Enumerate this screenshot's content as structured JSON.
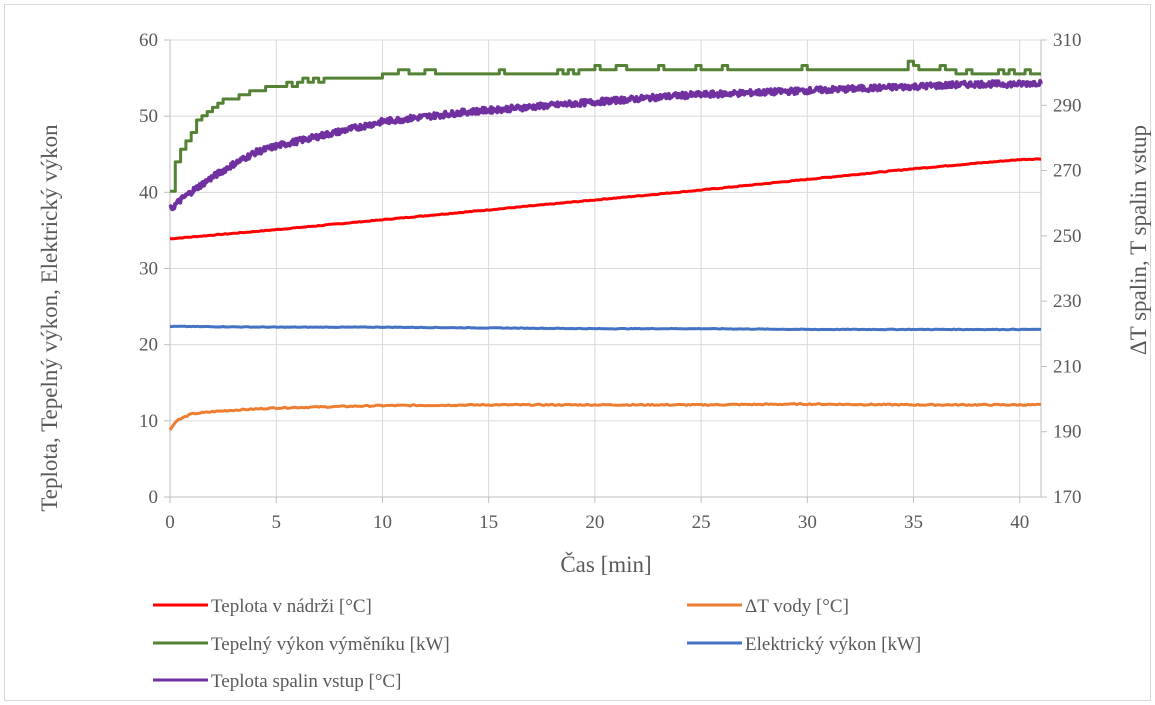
{
  "chart_data": {
    "type": "line",
    "title": "",
    "xlabel": "Čas [min]",
    "ylabel_left": "Teplota, Tepelný výkon, Elektrický výkon",
    "ylabel_right": "ΔT spalin, T spalin vstup",
    "xlim": [
      0,
      41
    ],
    "ylim_left": [
      0,
      60
    ],
    "ylim_right": [
      170,
      310
    ],
    "x_ticks": [
      "0",
      "5",
      "10",
      "15",
      "20",
      "25",
      "30",
      "35",
      "40"
    ],
    "y_left_ticks": [
      "0",
      "10",
      "20",
      "30",
      "40",
      "50",
      "60"
    ],
    "y_right_ticks": [
      "170",
      "190",
      "210",
      "230",
      "250",
      "270",
      "290",
      "310"
    ],
    "grid": true,
    "legend_position": "bottom",
    "series": [
      {
        "name": "Teplota v nádrži [°C]",
        "axis": "left",
        "color": "#ff0000",
        "x": [
          0,
          5,
          10,
          15,
          20,
          25,
          30,
          35,
          40,
          41
        ],
        "y": [
          33.9,
          35.1,
          36.4,
          37.7,
          39.0,
          40.3,
          41.7,
          43.1,
          44.3,
          44.4
        ]
      },
      {
        "name": "ΔT vody [°C]",
        "axis": "left",
        "color": "#ed7d31",
        "x": [
          0,
          0.3,
          1,
          2,
          3,
          5,
          10,
          15,
          20,
          25,
          30,
          35,
          41
        ],
        "y": [
          8.8,
          10.0,
          10.9,
          11.2,
          11.4,
          11.7,
          12.0,
          12.1,
          12.1,
          12.1,
          12.2,
          12.1,
          12.1
        ]
      },
      {
        "name": "Tepelný výkon výměníku [kW]",
        "axis": "left",
        "color": "#548235",
        "x": [
          0,
          0.3,
          1,
          1.5,
          2,
          3,
          4,
          5,
          6,
          7,
          8,
          9,
          10,
          11,
          12,
          13,
          14,
          15,
          17,
          20,
          22,
          25,
          28,
          30,
          33,
          35,
          36,
          38,
          41
        ],
        "y": [
          40.0,
          44.5,
          48.0,
          50.0,
          51.0,
          52.5,
          53.3,
          53.8,
          54.2,
          54.7,
          55.0,
          55.2,
          55.3,
          55.5,
          55.5,
          55.6,
          55.8,
          55.5,
          55.6,
          55.9,
          56.0,
          56.1,
          56.0,
          56.0,
          56.0,
          56.5,
          56.0,
          55.6,
          55.7
        ]
      },
      {
        "name": "Elektrický výkon [kW]",
        "axis": "left",
        "color": "#4472c4",
        "x": [
          0,
          5,
          10,
          15,
          20,
          25,
          30,
          35,
          41
        ],
        "y": [
          22.4,
          22.3,
          22.3,
          22.2,
          22.1,
          22.1,
          22.0,
          22.0,
          22.0
        ]
      },
      {
        "name": "Teplota spalin vstup [°C]",
        "axis": "right",
        "color": "#7030a0",
        "x": [
          0,
          0.5,
          1,
          2,
          3,
          4,
          5,
          6,
          7,
          8,
          9,
          10,
          12,
          14,
          16,
          18,
          20,
          22,
          24,
          26,
          28,
          30,
          32,
          34,
          36,
          38,
          40,
          41
        ],
        "y": [
          258,
          261,
          263.5,
          268,
          272,
          275.5,
          277.5,
          279,
          280.5,
          282,
          283.5,
          285,
          286.5,
          288,
          289,
          290,
          291,
          292,
          293,
          293.5,
          294,
          294.5,
          295,
          295.5,
          296,
          296.5,
          296.5,
          297
        ]
      }
    ]
  }
}
